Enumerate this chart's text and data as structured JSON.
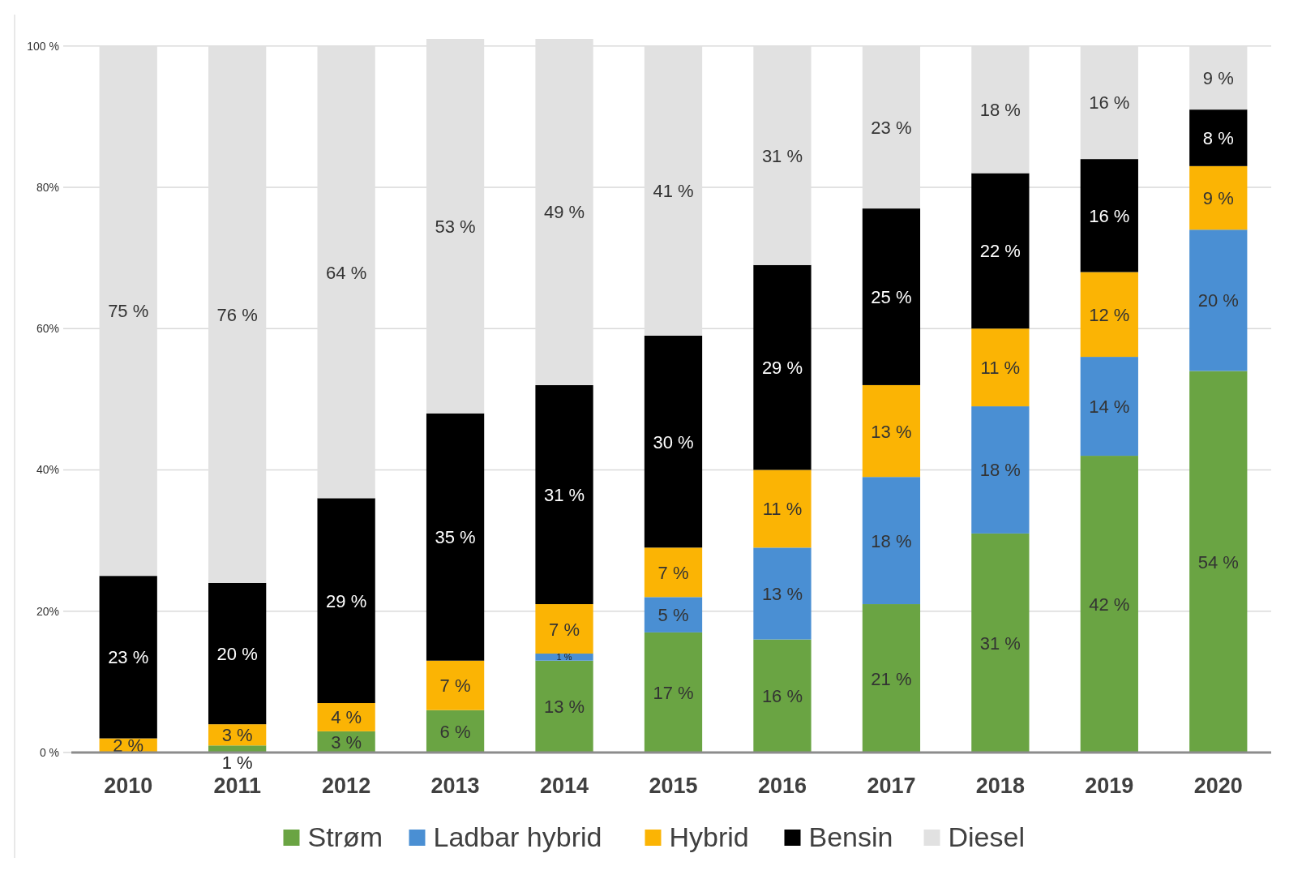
{
  "chart_data": {
    "type": "bar",
    "stacked": true,
    "categories": [
      "2010",
      "2011",
      "2012",
      "2013",
      "2014",
      "2015",
      "2016",
      "2017",
      "2018",
      "2019",
      "2020"
    ],
    "series": [
      {
        "name": "Strøm",
        "color": "#6aa443",
        "values": [
          0,
          1,
          3,
          6,
          13,
          17,
          16,
          21,
          31,
          42,
          54
        ],
        "value_labels": [
          null,
          "1 %",
          "3 %",
          "6 %",
          "13 %",
          "17 %",
          "16 %",
          "21 %",
          "31 %",
          "42 %",
          "54 %"
        ]
      },
      {
        "name": "Ladbar hybrid",
        "color": "#4a8fd3",
        "values": [
          0,
          0,
          0,
          0,
          1,
          5,
          13,
          18,
          18,
          14,
          20
        ],
        "value_labels": [
          null,
          null,
          null,
          null,
          "1 %",
          "5 %",
          "13 %",
          "18 %",
          "18 %",
          "14 %",
          "20 %"
        ]
      },
      {
        "name": "Hybrid",
        "color": "#fbb404",
        "values": [
          2,
          3,
          4,
          7,
          7,
          7,
          11,
          13,
          11,
          12,
          9
        ],
        "value_labels": [
          "2 %",
          "3 %",
          "4 %",
          "7 %",
          "7 %",
          "7 %",
          "11 %",
          "13 %",
          "11 %",
          "12 %",
          "9 %"
        ]
      },
      {
        "name": "Bensin",
        "color": "#000000",
        "values": [
          23,
          20,
          29,
          35,
          31,
          30,
          29,
          25,
          22,
          16,
          8
        ],
        "value_labels": [
          "23 %",
          "20 %",
          "29 %",
          "35 %",
          "31 %",
          "30 %",
          "29 %",
          "25 %",
          "22 %",
          "16 %",
          "8 %"
        ]
      },
      {
        "name": "Diesel",
        "color": "#e1e1e1",
        "values": [
          75,
          76,
          64,
          53,
          49,
          41,
          31,
          23,
          18,
          16,
          9
        ],
        "value_labels": [
          "75 %",
          "76 %",
          "64 %",
          "53 %",
          "49 %",
          "41 %",
          "31 %",
          "23 %",
          "18 %",
          "16 %",
          "9 %"
        ]
      }
    ],
    "ylim": [
      0,
      101
    ],
    "yticks": [
      {
        "value": 0,
        "label": "0 %"
      },
      {
        "value": 20,
        "label": "20%"
      },
      {
        "value": 40,
        "label": "40%"
      },
      {
        "value": 60,
        "label": "60%"
      },
      {
        "value": 80,
        "label": "80%"
      },
      {
        "value": 100,
        "label": "100 %"
      }
    ],
    "grid": "y",
    "legend": "bottom"
  }
}
